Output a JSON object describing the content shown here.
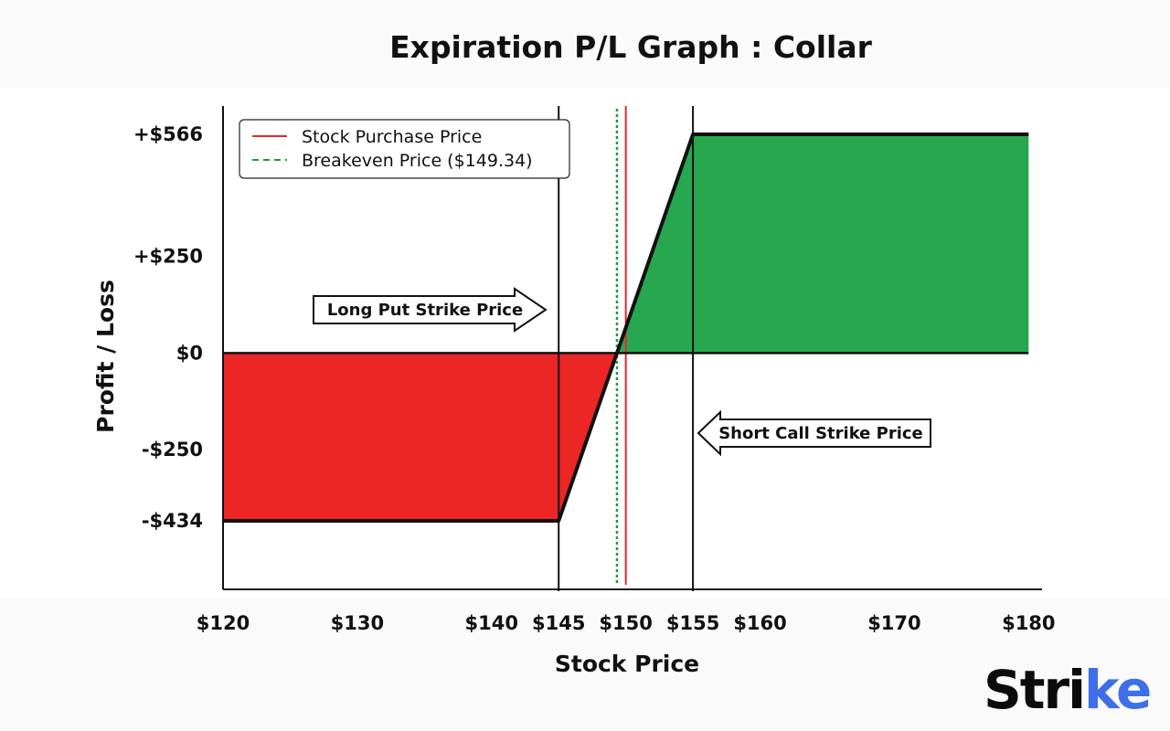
{
  "chart_data": {
    "type": "area",
    "title": "Expiration P/L Graph : Collar",
    "xlabel": "Stock Price",
    "ylabel": "Profit / Loss",
    "xlim": [
      120,
      181
    ],
    "ylim": [
      -434,
      566
    ],
    "x_ticks": [
      {
        "value": 120,
        "label": "$120"
      },
      {
        "value": 130,
        "label": "$130"
      },
      {
        "value": 140,
        "label": "$140"
      },
      {
        "value": 145,
        "label": "$145"
      },
      {
        "value": 150,
        "label": "$150"
      },
      {
        "value": 155,
        "label": "$155"
      },
      {
        "value": 160,
        "label": "$160"
      },
      {
        "value": 170,
        "label": "$170"
      },
      {
        "value": 180,
        "label": "$180"
      }
    ],
    "y_ticks": [
      {
        "value": 566,
        "label": "+$566"
      },
      {
        "value": 250,
        "label": "+$250"
      },
      {
        "value": 0,
        "label": "$0"
      },
      {
        "value": -250,
        "label": "-$250"
      },
      {
        "value": -434,
        "label": "-$434"
      }
    ],
    "series": [
      {
        "x": [
          120,
          145,
          155,
          180
        ],
        "y": [
          -434,
          -434,
          566,
          566
        ]
      }
    ],
    "long_put_strike": 145,
    "short_call_strike": 155,
    "stock_purchase_price": 150,
    "breakeven_price": 149.34,
    "colors": {
      "profit": "#27a74f",
      "loss": "#ec2525",
      "purchase_line": "#e8262b",
      "breakeven_line": "#1e9a3a",
      "pl_line": "#111111"
    },
    "legend": {
      "placement": "top-left",
      "entries": [
        {
          "label": "Stock Purchase Price",
          "style": "solid",
          "color": "#e8262b"
        },
        {
          "label": "Breakeven Price ($149.34)",
          "style": "dashed",
          "color": "#1e9a3a"
        }
      ]
    },
    "annotations": [
      {
        "label": "Long Put Strike Price",
        "arrow": "right"
      },
      {
        "label": "Short Call Strike Price",
        "arrow": "left"
      }
    ]
  },
  "branding": {
    "logo_text": "Strike",
    "logo_main": "Stri",
    "logo_accent": "ke",
    "accent_color": "#3f6fe8"
  }
}
